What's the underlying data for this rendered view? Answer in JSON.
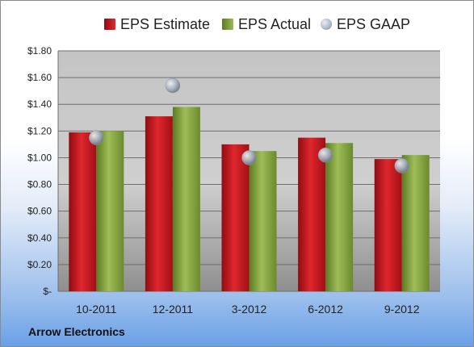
{
  "footer": {
    "company": "Arrow Electronics"
  },
  "colors": {
    "estimate": "#c8161d",
    "actual": "#7f9e3c",
    "gaap": "#a9b3c0",
    "plot_bg": "#c8c8c8"
  },
  "chart_data": {
    "type": "bar",
    "categories": [
      "10-2011",
      "12-2011",
      "3-2012",
      "6-2012",
      "9-2012"
    ],
    "series": [
      {
        "name": "EPS Estimate",
        "kind": "bar",
        "values": [
          1.19,
          1.31,
          1.1,
          1.15,
          0.99
        ]
      },
      {
        "name": "EPS Actual",
        "kind": "bar",
        "values": [
          1.2,
          1.38,
          1.05,
          1.11,
          1.02
        ]
      },
      {
        "name": "EPS GAAP",
        "kind": "marker",
        "values": [
          1.15,
          1.54,
          1.0,
          1.02,
          0.94
        ]
      }
    ],
    "y_ticks": [
      0,
      0.2,
      0.4,
      0.6,
      0.8,
      1.0,
      1.2,
      1.4,
      1.6,
      1.8
    ],
    "y_tick_labels": [
      "$-",
      "$0.20",
      "$0.40",
      "$0.60",
      "$0.80",
      "$1.00",
      "$1.20",
      "$1.40",
      "$1.60",
      "$1.80"
    ],
    "ylim": [
      0,
      1.8
    ],
    "grid": true,
    "legend_position": "top"
  }
}
